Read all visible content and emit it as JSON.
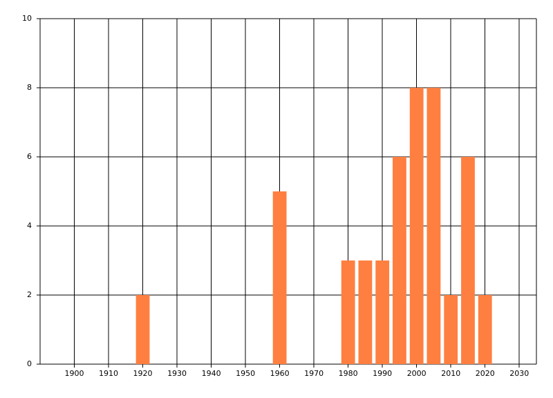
{
  "chart_data": {
    "type": "bar",
    "x": [
      1920,
      1960,
      1980,
      1985,
      1990,
      1995,
      2000,
      2005,
      2010,
      2015,
      2020
    ],
    "values": [
      2,
      5,
      3,
      3,
      3,
      6,
      8,
      8,
      2,
      6,
      2
    ],
    "color": "#ff7f40",
    "xlim": [
      1890,
      2035
    ],
    "xticks": [
      1900,
      1910,
      1920,
      1930,
      1940,
      1950,
      1960,
      1970,
      1980,
      1990,
      2000,
      2010,
      2020,
      2030
    ],
    "ylim": [
      0,
      10
    ],
    "yticks": [
      0,
      2,
      4,
      6,
      8,
      10
    ],
    "grid": true
  }
}
